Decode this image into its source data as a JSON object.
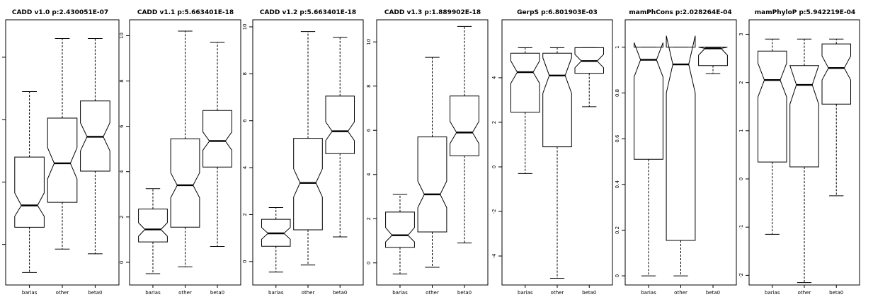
{
  "chart_data": [
    {
      "type": "boxplot",
      "title": "CADD v1.0 p:2.430051E-07",
      "categories": [
        "barias",
        "other",
        "beta0"
      ],
      "ylim": [
        -1.3,
        7.2
      ],
      "yticks": [
        0,
        2,
        4,
        6
      ],
      "boxes": [
        {
          "whisker_low": -0.9,
          "q1": 0.55,
          "median": 1.25,
          "q3": 2.8,
          "whisker_high": 4.9,
          "notch_low": 0.9,
          "notch_high": 1.65
        },
        {
          "whisker_low": -0.15,
          "q1": 1.35,
          "median": 2.6,
          "q3": 4.05,
          "whisker_high": 6.6,
          "notch_low": 2.1,
          "notch_high": 3.1
        },
        {
          "whisker_low": -0.3,
          "q1": 2.35,
          "median": 3.45,
          "q3": 4.6,
          "whisker_high": 6.6,
          "notch_low": 3.0,
          "notch_high": 3.9
        }
      ]
    },
    {
      "type": "boxplot",
      "title": "CADD v1.1 p:5.663401E-18",
      "categories": [
        "barias",
        "other",
        "beta0"
      ],
      "ylim": [
        -1.0,
        10.7
      ],
      "yticks": [
        0,
        2,
        4,
        6,
        8,
        10
      ],
      "boxes": [
        {
          "whisker_low": -0.5,
          "q1": 0.9,
          "median": 1.45,
          "q3": 2.35,
          "whisker_high": 3.25,
          "notch_low": 1.15,
          "notch_high": 1.75
        },
        {
          "whisker_low": -0.2,
          "q1": 1.55,
          "median": 3.4,
          "q3": 5.45,
          "whisker_high": 10.2,
          "notch_low": 2.85,
          "notch_high": 3.95
        },
        {
          "whisker_low": 0.7,
          "q1": 4.2,
          "median": 5.35,
          "q3": 6.7,
          "whisker_high": 9.7,
          "notch_low": 4.95,
          "notch_high": 5.75
        }
      ]
    },
    {
      "type": "boxplot",
      "title": "CADD v1.2 p:5.663401E-18",
      "categories": [
        "barias",
        "other",
        "beta0"
      ],
      "ylim": [
        -1.0,
        10.3
      ],
      "yticks": [
        0,
        2,
        4,
        6,
        8,
        10
      ],
      "boxes": [
        {
          "whisker_low": -0.45,
          "q1": 0.65,
          "median": 1.2,
          "q3": 1.8,
          "whisker_high": 2.3,
          "notch_low": 0.95,
          "notch_high": 1.45
        },
        {
          "whisker_low": -0.15,
          "q1": 1.35,
          "median": 3.35,
          "q3": 5.25,
          "whisker_high": 9.8,
          "notch_low": 2.75,
          "notch_high": 3.95
        },
        {
          "whisker_low": 1.05,
          "q1": 4.6,
          "median": 5.55,
          "q3": 7.05,
          "whisker_high": 9.55,
          "notch_low": 5.15,
          "notch_high": 5.95
        }
      ]
    },
    {
      "type": "boxplot",
      "title": "CADD v1.3 p:1.889902E-18",
      "categories": [
        "barias",
        "other",
        "beta0"
      ],
      "ylim": [
        -1.0,
        11.0
      ],
      "yticks": [
        0,
        2,
        4,
        6,
        8,
        10
      ],
      "boxes": [
        {
          "whisker_low": -0.5,
          "q1": 0.7,
          "median": 1.25,
          "q3": 2.3,
          "whisker_high": 3.1,
          "notch_low": 0.95,
          "notch_high": 1.6
        },
        {
          "whisker_low": -0.2,
          "q1": 1.4,
          "median": 3.1,
          "q3": 5.7,
          "whisker_high": 9.3,
          "notch_low": 2.5,
          "notch_high": 3.7
        },
        {
          "whisker_low": 0.9,
          "q1": 4.85,
          "median": 5.9,
          "q3": 7.55,
          "whisker_high": 10.7,
          "notch_low": 5.4,
          "notch_high": 6.4
        }
      ]
    },
    {
      "type": "boxplot",
      "title": "GerpS p:6.801903E-03",
      "categories": [
        "barias",
        "other",
        "beta0"
      ],
      "ylim": [
        -5.3,
        6.6
      ],
      "yticks": [
        -4,
        -2,
        0,
        2,
        4
      ],
      "boxes": [
        {
          "whisker_low": -0.3,
          "q1": 2.45,
          "median": 4.25,
          "q3": 5.1,
          "whisker_high": 5.35,
          "notch_low": 3.75,
          "notch_high": 4.75
        },
        {
          "whisker_low": -5.0,
          "q1": 0.9,
          "median": 4.1,
          "q3": 5.1,
          "whisker_high": 5.35,
          "notch_low": 3.3,
          "notch_high": 4.9
        },
        {
          "whisker_low": 2.7,
          "q1": 4.2,
          "median": 4.75,
          "q3": 5.35,
          "whisker_high": 5.35,
          "notch_low": 4.45,
          "notch_high": 5.05
        }
      ]
    },
    {
      "type": "boxplot",
      "title": "mamPhCons p:2.028264E-04",
      "categories": [
        "barias",
        "other",
        "beta0"
      ],
      "ylim": [
        -0.04,
        1.12
      ],
      "yticks": [
        0.0,
        0.2,
        0.4,
        0.6,
        0.8,
        1.0
      ],
      "boxes": [
        {
          "whisker_low": 0.0,
          "q1": 0.51,
          "median": 0.945,
          "q3": 1.0,
          "whisker_high": 1.0,
          "notch_low": 0.87,
          "notch_high": 1.02
        },
        {
          "whisker_low": 0.0,
          "q1": 0.155,
          "median": 0.925,
          "q3": 1.0,
          "whisker_high": 1.0,
          "notch_low": 0.8,
          "notch_high": 1.05
        },
        {
          "whisker_low": 0.885,
          "q1": 0.92,
          "median": 0.995,
          "q3": 1.0,
          "whisker_high": 1.0,
          "notch_low": 0.965,
          "notch_high": 1.0
        }
      ]
    },
    {
      "type": "boxplot",
      "title": "mamPhyloP p:5.942219E-04",
      "categories": [
        "barias",
        "other",
        "beta0"
      ],
      "ylim": [
        -2.2,
        3.3
      ],
      "yticks": [
        -2,
        -1,
        0,
        1,
        2,
        3
      ],
      "boxes": [
        {
          "whisker_low": -1.15,
          "q1": 0.35,
          "median": 2.05,
          "q3": 2.65,
          "whisker_high": 2.9,
          "notch_low": 1.7,
          "notch_high": 2.4
        },
        {
          "whisker_low": -2.15,
          "q1": 0.25,
          "median": 1.95,
          "q3": 2.35,
          "whisker_high": 2.9,
          "notch_low": 1.55,
          "notch_high": 2.35
        },
        {
          "whisker_low": -0.35,
          "q1": 1.55,
          "median": 2.3,
          "q3": 2.8,
          "whisker_high": 2.9,
          "notch_low": 2.05,
          "notch_high": 2.55
        }
      ]
    }
  ]
}
